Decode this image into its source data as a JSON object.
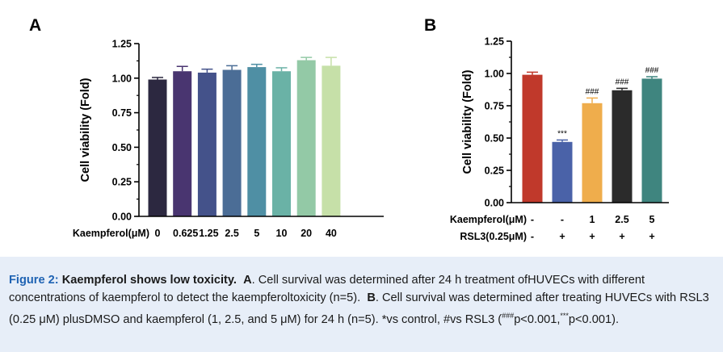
{
  "chart_data": [
    {
      "type": "bar",
      "panel": "A",
      "ylabel": "Cell viability (Fold)",
      "xlabel": "Kaempferol(μM)",
      "categories": [
        "0",
        "0.625",
        "1.25",
        "2.5",
        "5",
        "10",
        "20",
        "40"
      ],
      "values": [
        0.99,
        1.05,
        1.04,
        1.06,
        1.08,
        1.05,
        1.13,
        1.09
      ],
      "errors": [
        0.015,
        0.035,
        0.025,
        0.03,
        0.02,
        0.025,
        0.02,
        0.06
      ],
      "colors": [
        "#2c2840",
        "#493570",
        "#44528a",
        "#4b6d96",
        "#4f8fa4",
        "#6ab2a6",
        "#93c9a6",
        "#c6e0a8"
      ],
      "ylim": [
        0,
        1.25
      ],
      "yticks": [
        "0.00",
        "0.25",
        "0.50",
        "0.75",
        "1.00",
        "1.25"
      ]
    },
    {
      "type": "bar",
      "panel": "B",
      "ylabel": "Cell viability (Fold)",
      "row_labels": [
        "Kaempferol(μM)",
        "RSL3(0.25μM)"
      ],
      "kaempferol": [
        "-",
        "-",
        "1",
        "2.5",
        "5"
      ],
      "rsl3": [
        "-",
        "+",
        "+",
        "+",
        "+"
      ],
      "values": [
        0.99,
        0.47,
        0.77,
        0.87,
        0.96
      ],
      "errors": [
        0.02,
        0.015,
        0.04,
        0.015,
        0.015
      ],
      "annotations": [
        "",
        "***",
        "###",
        "###",
        "###"
      ],
      "colors": [
        "#c0392b",
        "#4a62a8",
        "#efad4c",
        "#2b2b2b",
        "#3f857f"
      ],
      "ylim": [
        0,
        1.25
      ],
      "yticks": [
        "0.00",
        "0.25",
        "0.50",
        "0.75",
        "1.00",
        "1.25"
      ]
    }
  ],
  "caption": {
    "figure_label": "Figure 2",
    "title": "Kaempferol shows low toxicity",
    "a_label": "A",
    "a_text": "Cell survival was determined after 24 h treatment ofHUVECs with different concentrations of kaempferol to detect the kaempferoltoxicity (n=5).",
    "b_label": "B",
    "b_text": "Cell survival was determined after treating HUVECs with RSL3 (0.25 μM) plusDMSO and kaempferol (1, 2.5, and 5 μM) for 24 h (n=5). *vs control, #vs RSL3 (",
    "sig1": "###",
    "p1": "p<0.001,",
    "sig2": "***",
    "p2": "p<0.001)."
  }
}
